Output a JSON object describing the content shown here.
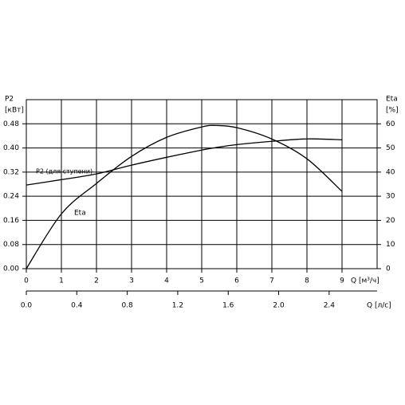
{
  "chart_data": {
    "type": "line",
    "y_label": "P2",
    "y_unit": "[кВт]",
    "y2_label": "Eta",
    "y2_unit": "[%]",
    "x_label": "Q [м³/ч]",
    "x2_label": "Q [л/с]",
    "x": [
      0,
      1,
      2,
      3,
      4,
      5,
      5.4,
      6,
      7,
      8,
      9
    ],
    "series": [
      {
        "name": "P2 (для ступени)",
        "color": "#000000",
        "values": [
          0.277,
          0.295,
          0.314,
          0.343,
          0.369,
          0.393,
          0.401,
          0.411,
          0.422,
          0.43,
          0.427
        ]
      },
      {
        "name": "Eta",
        "color": "#000000",
        "axis": "y2",
        "values": [
          0,
          22.7,
          35.3,
          46.5,
          54.4,
          58.7,
          59.3,
          58.4,
          53.7,
          45.5,
          32
        ]
      }
    ],
    "xlim": [
      0,
      10
    ],
    "xticks": [
      0,
      1,
      2,
      3,
      4,
      5,
      6,
      7,
      8,
      9
    ],
    "x2lim": [
      0,
      2.78
    ],
    "x2ticks": [
      {
        "value": 0,
        "label": "0.0"
      },
      {
        "value": 0.4,
        "label": "0.4"
      },
      {
        "value": 0.8,
        "label": "0.8"
      },
      {
        "value": 1.2,
        "label": "1.2"
      },
      {
        "value": 1.6,
        "label": "1.6"
      },
      {
        "value": 2.0,
        "label": "2.0"
      },
      {
        "value": 2.4,
        "label": "2.4"
      }
    ],
    "ylim": [
      0,
      0.56
    ],
    "yticks": [
      {
        "value": 0,
        "label": "0.00"
      },
      {
        "value": 0.08,
        "label": "0.08"
      },
      {
        "value": 0.16,
        "label": "0.16"
      },
      {
        "value": 0.24,
        "label": "0.24"
      },
      {
        "value": 0.32,
        "label": "0.32"
      },
      {
        "value": 0.4,
        "label": "0.40"
      },
      {
        "value": 0.48,
        "label": "0.48"
      }
    ],
    "y2lim": [
      0,
      70
    ],
    "y2ticks": [
      0,
      10,
      20,
      30,
      40,
      50,
      60
    ],
    "grid": true
  }
}
